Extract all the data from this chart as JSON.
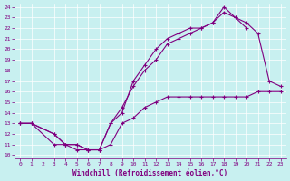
{
  "xlabel": "Windchill (Refroidissement éolien,°C)",
  "bg_color": "#c8f0f0",
  "line_color": "#800080",
  "xlim": [
    -0.5,
    23.5
  ],
  "ylim": [
    9.7,
    24.3
  ],
  "xticks": [
    0,
    1,
    2,
    3,
    4,
    5,
    6,
    7,
    8,
    9,
    10,
    11,
    12,
    13,
    14,
    15,
    16,
    17,
    18,
    19,
    20,
    21,
    22,
    23
  ],
  "yticks": [
    10,
    11,
    12,
    13,
    14,
    15,
    16,
    17,
    18,
    19,
    20,
    21,
    22,
    23,
    24
  ],
  "line1_x": [
    0,
    1,
    3,
    4,
    5,
    6,
    7,
    8,
    9,
    10,
    11,
    12,
    13,
    14,
    15,
    16,
    17,
    18,
    19,
    20,
    21,
    22,
    23
  ],
  "line1_y": [
    13,
    13,
    11,
    11,
    10.5,
    10.5,
    10.5,
    11,
    13,
    13.5,
    14.5,
    15,
    15.5,
    15.5,
    15.5,
    15.5,
    15.5,
    15.5,
    15.5,
    15.5,
    16,
    16,
    16
  ],
  "line2_x": [
    0,
    1,
    3,
    4,
    5,
    6,
    7,
    8,
    9,
    10,
    11,
    12,
    13,
    14,
    15,
    16,
    17,
    18,
    19,
    20,
    21,
    22,
    23
  ],
  "line2_y": [
    13,
    13,
    12,
    11,
    11,
    10.5,
    10.5,
    13,
    14.5,
    16.5,
    18,
    19,
    20.5,
    21,
    21.5,
    22,
    22.5,
    24,
    23,
    22.5,
    21.5,
    17,
    16.5
  ],
  "line3_x": [
    0,
    1,
    3,
    4,
    5,
    6,
    7,
    8,
    9,
    10,
    11,
    12,
    13,
    14,
    15,
    16,
    17,
    18,
    19,
    20
  ],
  "line3_y": [
    13,
    13,
    12,
    11,
    11,
    10.5,
    10.5,
    13,
    14,
    17,
    18.5,
    20,
    21,
    21.5,
    22,
    22,
    22.5,
    23.5,
    23,
    22
  ]
}
